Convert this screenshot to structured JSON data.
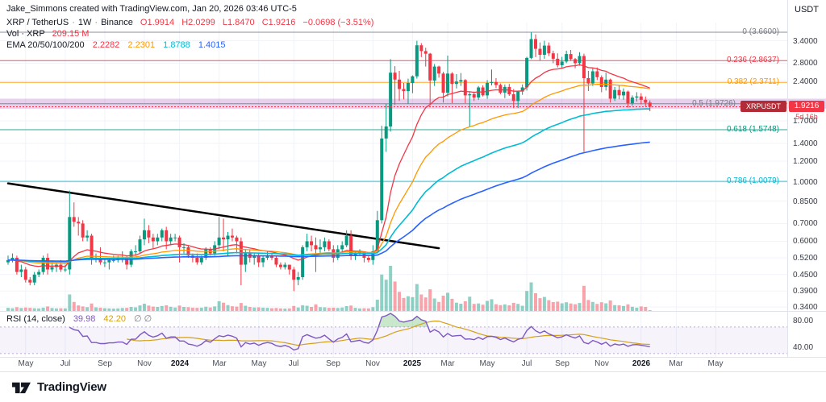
{
  "attribution": "Jake_Simmons created with TradingView.com, Jan 20, 2026 03:46 UTC-5",
  "legend": {
    "symbol": "XRP / TetherUS",
    "sep": "·",
    "interval": "1W",
    "exchange": "Binance",
    "ohlc": {
      "items": [
        {
          "k": "O",
          "v": "1.9914"
        },
        {
          "k": "H",
          "v": "2.0299"
        },
        {
          "k": "L",
          "v": "1.8470"
        },
        {
          "k": "C",
          "v": "1.9216"
        }
      ],
      "change": "−0.0698 (−3.51%)"
    },
    "volume": {
      "label": "Vol · XRP",
      "value": "209.15 M"
    },
    "ema": {
      "label": "EMA 20/50/100/200",
      "values": [
        "2.2282",
        "2.2301",
        "1.8788",
        "1.4015"
      ]
    }
  },
  "rsi_legend": {
    "label": "RSI (14, close)",
    "value": "39.98",
    "ma_value": "42.20",
    "empty": "∅ ∅"
  },
  "price_axis": {
    "currency": "USDT",
    "ticks": [
      "3.4000",
      "2.8000",
      "2.4000",
      "1.7000",
      "1.4000",
      "1.2000",
      "1.0000",
      "0.8500",
      "0.7000",
      "0.6000",
      "0.5200",
      "0.4500",
      "0.3900",
      "0.3400"
    ],
    "price_badge": "1.9216",
    "symbol_badge": "XRPUSDT",
    "countdown": "5d 16h"
  },
  "rsi_axis": {
    "ticks": [
      "80.00",
      "40.00"
    ]
  },
  "time_axis": {
    "labels": [
      {
        "text": "May",
        "i": 4
      },
      {
        "text": "Jul",
        "i": 13
      },
      {
        "text": "Sep",
        "i": 22
      },
      {
        "text": "Nov",
        "i": 31
      },
      {
        "text": "2024",
        "i": 39,
        "year": true
      },
      {
        "text": "Mar",
        "i": 48
      },
      {
        "text": "May",
        "i": 57
      },
      {
        "text": "Jul",
        "i": 65
      },
      {
        "text": "Sep",
        "i": 74
      },
      {
        "text": "Nov",
        "i": 83
      },
      {
        "text": "2025",
        "i": 92,
        "year": true
      },
      {
        "text": "Mar",
        "i": 100
      },
      {
        "text": "May",
        "i": 109
      },
      {
        "text": "Jul",
        "i": 118
      },
      {
        "text": "Sep",
        "i": 126
      },
      {
        "text": "Nov",
        "i": 135
      },
      {
        "text": "2026",
        "i": 144,
        "year": true
      },
      {
        "text": "Mar",
        "i": 152
      },
      {
        "text": "May",
        "i": 161
      }
    ]
  },
  "footer": {
    "brand": "TradingView"
  },
  "chart_data": {
    "type": "candlestick",
    "symbol": "XRPUSDT",
    "interval": "1W",
    "price_scale": "log",
    "panes": [
      "price+volume+ema+fib",
      "rsi"
    ],
    "price_axis_range": [
      0.33,
      3.98
    ],
    "colors": {
      "up": "#089981",
      "down": "#f23645",
      "volume_up": "rgba(8,153,129,0.45)",
      "volume_down": "rgba(242,54,69,0.45)",
      "ema": [
        "#f23645",
        "#ff9800",
        "#00bcd4",
        "#2962ff"
      ],
      "rsi": "#7e57c2",
      "rsi_ma": "#d4a017",
      "trendline": "#000000"
    },
    "fib_levels": [
      {
        "level": "0",
        "price": 3.66,
        "label": "0 (3.6600)",
        "color": "#787b86"
      },
      {
        "level": "0.236",
        "price": 2.8637,
        "label": "0.236 (2.8637)",
        "color": "#f23645"
      },
      {
        "level": "0.382",
        "price": 2.3711,
        "label": "0.382 (2.3711)",
        "color": "#ff9800"
      },
      {
        "level": "0.5",
        "price": 1.9726,
        "label": "0.5 (1.9726)",
        "color": "#787b86",
        "band": {
          "from": 1.89,
          "to": 2.06,
          "color": "rgba(156,39,176,0.22)"
        }
      },
      {
        "level": "0.618",
        "price": 1.5748,
        "label": "0.618 (1.5748)",
        "color": "#089981"
      },
      {
        "level": "0.786",
        "price": 1.0079,
        "label": "0.786 (1.0079)",
        "color": "#00bcd4"
      }
    ],
    "trendline": {
      "i1": 0,
      "p1": 0.99,
      "i2": 98,
      "p2": 0.565
    },
    "current_price": 1.9216,
    "last_candle": {
      "o": 1.9914,
      "h": 2.0299,
      "l": 1.847,
      "c": 1.9216,
      "change": -0.0698,
      "change_pct": -3.51
    },
    "ema_periods": [
      20,
      50,
      100,
      200
    ],
    "ema_last": [
      2.2282,
      2.2301,
      1.8788,
      1.4015
    ],
    "rsi": {
      "period": 14,
      "last": 39.98,
      "ma_last": 42.2,
      "overbought": 70,
      "oversold": 30,
      "axis_ticks": [
        80,
        40
      ]
    },
    "candles": [
      [
        0.5,
        0.53,
        0.49,
        0.51
      ],
      [
        0.51,
        0.54,
        0.5,
        0.52
      ],
      [
        0.52,
        0.53,
        0.45,
        0.46
      ],
      [
        0.46,
        0.49,
        0.44,
        0.47
      ],
      [
        0.47,
        0.48,
        0.42,
        0.43
      ],
      [
        0.43,
        0.44,
        0.41,
        0.42
      ],
      [
        0.42,
        0.46,
        0.41,
        0.45
      ],
      [
        0.45,
        0.47,
        0.44,
        0.46
      ],
      [
        0.46,
        0.53,
        0.45,
        0.52
      ],
      [
        0.52,
        0.54,
        0.45,
        0.47
      ],
      [
        0.47,
        0.5,
        0.46,
        0.48
      ],
      [
        0.48,
        0.5,
        0.46,
        0.49
      ],
      [
        0.49,
        0.51,
        0.46,
        0.47
      ],
      [
        0.47,
        0.49,
        0.46,
        0.47
      ],
      [
        0.47,
        0.93,
        0.45,
        0.74
      ],
      [
        0.74,
        0.84,
        0.68,
        0.71
      ],
      [
        0.71,
        0.74,
        0.63,
        0.7
      ],
      [
        0.7,
        0.72,
        0.6,
        0.62
      ],
      [
        0.62,
        0.66,
        0.6,
        0.63
      ],
      [
        0.63,
        0.64,
        0.49,
        0.52
      ],
      [
        0.52,
        0.54,
        0.5,
        0.52
      ],
      [
        0.52,
        0.57,
        0.49,
        0.5
      ],
      [
        0.5,
        0.52,
        0.48,
        0.5
      ],
      [
        0.5,
        0.52,
        0.47,
        0.51
      ],
      [
        0.51,
        0.53,
        0.5,
        0.51
      ],
      [
        0.51,
        0.53,
        0.5,
        0.52
      ],
      [
        0.52,
        0.55,
        0.5,
        0.52
      ],
      [
        0.52,
        0.53,
        0.47,
        0.49
      ],
      [
        0.49,
        0.56,
        0.48,
        0.55
      ],
      [
        0.55,
        0.58,
        0.53,
        0.55
      ],
      [
        0.55,
        0.63,
        0.54,
        0.61
      ],
      [
        0.61,
        0.73,
        0.58,
        0.66
      ],
      [
        0.66,
        0.69,
        0.59,
        0.62
      ],
      [
        0.62,
        0.64,
        0.56,
        0.6
      ],
      [
        0.6,
        0.64,
        0.58,
        0.62
      ],
      [
        0.62,
        0.67,
        0.6,
        0.66
      ],
      [
        0.66,
        0.68,
        0.56,
        0.6
      ],
      [
        0.6,
        0.64,
        0.58,
        0.62
      ],
      [
        0.62,
        0.64,
        0.6,
        0.62
      ],
      [
        0.62,
        0.63,
        0.5,
        0.57
      ],
      [
        0.57,
        0.59,
        0.54,
        0.57
      ],
      [
        0.57,
        0.58,
        0.52,
        0.53
      ],
      [
        0.53,
        0.54,
        0.5,
        0.52
      ],
      [
        0.52,
        0.54,
        0.49,
        0.5
      ],
      [
        0.5,
        0.53,
        0.49,
        0.52
      ],
      [
        0.52,
        0.57,
        0.51,
        0.56
      ],
      [
        0.56,
        0.57,
        0.53,
        0.54
      ],
      [
        0.54,
        0.6,
        0.53,
        0.58
      ],
      [
        0.58,
        0.74,
        0.56,
        0.62
      ],
      [
        0.62,
        0.73,
        0.55,
        0.61
      ],
      [
        0.61,
        0.65,
        0.53,
        0.63
      ],
      [
        0.63,
        0.67,
        0.6,
        0.62
      ],
      [
        0.62,
        0.63,
        0.54,
        0.6
      ],
      [
        0.6,
        0.62,
        0.41,
        0.49
      ],
      [
        0.49,
        0.56,
        0.46,
        0.54
      ],
      [
        0.54,
        0.56,
        0.5,
        0.52
      ],
      [
        0.52,
        0.54,
        0.49,
        0.53
      ],
      [
        0.53,
        0.54,
        0.48,
        0.5
      ],
      [
        0.5,
        0.53,
        0.48,
        0.52
      ],
      [
        0.52,
        0.55,
        0.51,
        0.53
      ],
      [
        0.53,
        0.54,
        0.51,
        0.52
      ],
      [
        0.52,
        0.53,
        0.48,
        0.49
      ],
      [
        0.49,
        0.5,
        0.47,
        0.48
      ],
      [
        0.48,
        0.5,
        0.47,
        0.49
      ],
      [
        0.49,
        0.49,
        0.45,
        0.47
      ],
      [
        0.47,
        0.48,
        0.39,
        0.43
      ],
      [
        0.43,
        0.46,
        0.41,
        0.44
      ],
      [
        0.44,
        0.58,
        0.43,
        0.57
      ],
      [
        0.57,
        0.64,
        0.55,
        0.6
      ],
      [
        0.6,
        0.63,
        0.55,
        0.58
      ],
      [
        0.58,
        0.62,
        0.46,
        0.56
      ],
      [
        0.56,
        0.61,
        0.54,
        0.57
      ],
      [
        0.57,
        0.62,
        0.55,
        0.6
      ],
      [
        0.6,
        0.61,
        0.55,
        0.56
      ],
      [
        0.56,
        0.58,
        0.5,
        0.52
      ],
      [
        0.52,
        0.58,
        0.51,
        0.56
      ],
      [
        0.56,
        0.6,
        0.54,
        0.58
      ],
      [
        0.58,
        0.66,
        0.57,
        0.63
      ],
      [
        0.63,
        0.66,
        0.51,
        0.53
      ],
      [
        0.53,
        0.55,
        0.51,
        0.54
      ],
      [
        0.54,
        0.56,
        0.53,
        0.55
      ],
      [
        0.55,
        0.55,
        0.5,
        0.52
      ],
      [
        0.52,
        0.53,
        0.5,
        0.51
      ],
      [
        0.51,
        0.58,
        0.49,
        0.55
      ],
      [
        0.55,
        0.78,
        0.54,
        0.72
      ],
      [
        0.72,
        1.63,
        0.7,
        1.46
      ],
      [
        1.46,
        1.97,
        1.3,
        1.62
      ],
      [
        1.62,
        2.9,
        1.55,
        2.58
      ],
      [
        2.58,
        2.73,
        1.95,
        2.43
      ],
      [
        2.43,
        2.62,
        2.02,
        2.24
      ],
      [
        2.24,
        2.36,
        2.05,
        2.2
      ],
      [
        2.2,
        2.45,
        1.97,
        2.36
      ],
      [
        2.36,
        2.52,
        2.16,
        2.5
      ],
      [
        2.5,
        3.4,
        2.45,
        3.27
      ],
      [
        3.27,
        3.33,
        2.95,
        3.11
      ],
      [
        3.11,
        3.2,
        2.72,
        3.04
      ],
      [
        3.04,
        3.06,
        1.95,
        2.41
      ],
      [
        2.41,
        2.78,
        2.3,
        2.72
      ],
      [
        2.72,
        2.74,
        2.47,
        2.56
      ],
      [
        2.56,
        2.6,
        1.99,
        2.17
      ],
      [
        2.17,
        2.99,
        2.1,
        2.56
      ],
      [
        2.56,
        2.59,
        1.98,
        2.34
      ],
      [
        2.34,
        2.55,
        2.25,
        2.39
      ],
      [
        2.39,
        2.57,
        2.3,
        2.42
      ],
      [
        2.42,
        2.44,
        1.98,
        2.12
      ],
      [
        2.12,
        2.18,
        1.61,
        2.14
      ],
      [
        2.14,
        2.19,
        2.02,
        2.08
      ],
      [
        2.08,
        2.3,
        2.04,
        2.27
      ],
      [
        2.27,
        2.31,
        2.1,
        2.12
      ],
      [
        2.12,
        2.42,
        2.06,
        2.36
      ],
      [
        2.36,
        2.65,
        2.31,
        2.38
      ],
      [
        2.38,
        2.46,
        2.26,
        2.32
      ],
      [
        2.32,
        2.35,
        2.14,
        2.17
      ],
      [
        2.17,
        2.33,
        2.07,
        2.28
      ],
      [
        2.28,
        2.34,
        2.11,
        2.14
      ],
      [
        2.14,
        2.24,
        1.9,
        2.02
      ],
      [
        2.02,
        2.21,
        1.9,
        2.19
      ],
      [
        2.19,
        2.33,
        2.13,
        2.27
      ],
      [
        2.27,
        2.96,
        2.21,
        2.93
      ],
      [
        2.93,
        3.66,
        2.9,
        3.45
      ],
      [
        3.45,
        3.59,
        2.95,
        3.17
      ],
      [
        3.17,
        3.35,
        2.87,
        3.01
      ],
      [
        3.01,
        3.4,
        2.91,
        3.26
      ],
      [
        3.26,
        3.35,
        2.98,
        3.05
      ],
      [
        3.05,
        3.12,
        2.8,
        2.91
      ],
      [
        2.91,
        3.05,
        2.7,
        2.75
      ],
      [
        2.75,
        2.96,
        2.68,
        2.84
      ],
      [
        2.84,
        3.12,
        2.8,
        3.03
      ],
      [
        3.03,
        3.14,
        2.86,
        2.9
      ],
      [
        2.9,
        2.93,
        2.68,
        2.8
      ],
      [
        2.8,
        3.08,
        2.74,
        2.98
      ],
      [
        2.98,
        3.04,
        1.3,
        2.46
      ],
      [
        2.46,
        2.62,
        2.2,
        2.35
      ],
      [
        2.35,
        2.68,
        2.3,
        2.61
      ],
      [
        2.61,
        2.7,
        2.42,
        2.48
      ],
      [
        2.48,
        2.52,
        2.18,
        2.28
      ],
      [
        2.28,
        2.58,
        2.21,
        2.43
      ],
      [
        2.43,
        2.45,
        1.99,
        2.06
      ],
      [
        2.06,
        2.28,
        2.02,
        2.22
      ],
      [
        2.22,
        2.32,
        2.05,
        2.12
      ],
      [
        2.12,
        2.25,
        2.04,
        2.19
      ],
      [
        2.19,
        2.21,
        1.91,
        1.98
      ],
      [
        1.98,
        2.12,
        1.94,
        2.08
      ],
      [
        2.08,
        2.18,
        2.01,
        2.1
      ],
      [
        2.1,
        2.16,
        1.96,
        2.04
      ],
      [
        2.04,
        2.1,
        1.93,
        1.99
      ],
      [
        1.9914,
        2.0299,
        1.847,
        1.9216
      ]
    ],
    "volumes": [
      1800,
      1600,
      2200,
      1700,
      2000,
      1800,
      1600,
      1500,
      1900,
      2600,
      1700,
      1500,
      1600,
      1500,
      9500,
      5200,
      3200,
      2600,
      2200,
      4300,
      2100,
      1900,
      1600,
      1500,
      1400,
      1500,
      1700,
      1800,
      2300,
      2100,
      3200,
      4200,
      3100,
      2500,
      2300,
      2900,
      3300,
      2400,
      2000,
      3100,
      2300,
      2200,
      1900,
      1800,
      1900,
      2400,
      2000,
      2600,
      5600,
      4800,
      3400,
      2700,
      2500,
      4600,
      3000,
      2300,
      2000,
      2100,
      1900,
      1800,
      1600,
      1700,
      1500,
      1400,
      1500,
      2900,
      2000,
      3300,
      3000,
      2300,
      3800,
      2200,
      2100,
      1800,
      1900,
      1700,
      2000,
      2800,
      3100,
      1800,
      1500,
      1600,
      1500,
      2200,
      6500,
      21000,
      18000,
      26000,
      17000,
      11000,
      7500,
      8500,
      8000,
      15500,
      9500,
      7800,
      12500,
      7200,
      5200,
      8800,
      10500,
      7000,
      4800,
      4200,
      5600,
      8200,
      4100,
      4300,
      3600,
      5800,
      6800,
      3900,
      3400,
      3800,
      3300,
      4700,
      4100,
      3000,
      11500,
      16500,
      10200,
      7400,
      8100,
      6200,
      5100,
      5400,
      4400,
      5000,
      4300,
      3900,
      4600,
      14500,
      6300,
      5200,
      4100,
      5000,
      4400,
      6100,
      3400,
      3300,
      2900,
      3800,
      2400,
      1900,
      2600,
      2300,
      209
    ]
  }
}
